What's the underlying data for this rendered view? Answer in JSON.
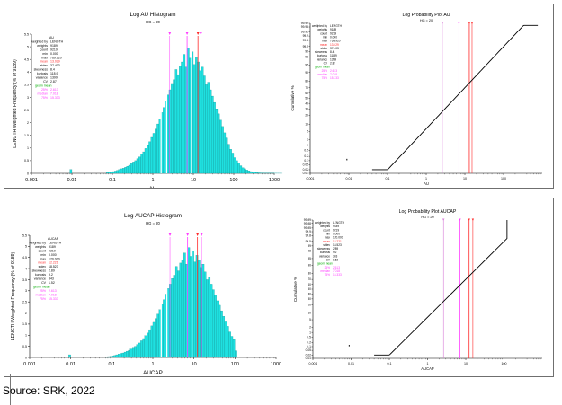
{
  "colors": {
    "bar": "#1fe0e0",
    "bar_edge": "#0b8c8c",
    "mean": "#ff2a2a",
    "median": "#ff3dff",
    "quantile": "#d87cd8",
    "geom": "#00aa00",
    "curve": "#000000"
  },
  "source": "Source: SRK, 2022",
  "panels": [
    {
      "hist": {
        "title": "Log AU Histogram",
        "subtitle": "HG = 20",
        "xlabel": "AU",
        "ylabel": "LENGTH Weighted Frequency (% of 9189)",
        "stats_header": "AU",
        "stats": [
          [
            "weighted by",
            "LENGTH"
          ],
          [
            "weights",
            "9189"
          ],
          [
            "count",
            "9219"
          ],
          [
            "min",
            "0.000"
          ],
          [
            "max",
            "769.920"
          ],
          [
            "mean",
            "13.029"
          ],
          [
            "stdev",
            "37.403"
          ],
          [
            "skewness",
            "8.4"
          ],
          [
            "kurtosis",
            "118.9"
          ],
          [
            "variance",
            "1399"
          ],
          [
            "CV",
            "2.87"
          ]
        ],
        "geo_label": "geom mean",
        "quantiles": [
          [
            "25%",
            "2.613"
          ],
          [
            "median",
            "7.018"
          ],
          [
            "75%",
            "15.333"
          ]
        ]
      },
      "prob": {
        "title": "Log Probability Plot AU",
        "subtitle": "HG = 20",
        "xlabel": "AU",
        "ylabel": "Cumulative %",
        "stats_header": "",
        "stats": [
          [
            "weighted by",
            "LENGTH"
          ],
          [
            "weights",
            "9189"
          ],
          [
            "count",
            "9219"
          ],
          [
            "min",
            "0.000"
          ],
          [
            "max",
            "769.920"
          ],
          [
            "mean",
            "13.029"
          ],
          [
            "stdev",
            "37.403"
          ],
          [
            "skewness",
            "8.4"
          ],
          [
            "kurtosis",
            "118.9"
          ],
          [
            "variance",
            "1399"
          ],
          [
            "CV",
            "2.87"
          ]
        ],
        "geo_label": "geom mean",
        "quantiles": [
          [
            "25%",
            "2.613"
          ],
          [
            "median",
            "7.018"
          ],
          [
            "75%",
            "15.333"
          ]
        ]
      }
    },
    {
      "hist": {
        "title": "Log AUCAP Histogram",
        "subtitle": "HG = 20",
        "xlabel": "AUCAP",
        "ylabel": "LENGTH Weighted Frequency (% of 9189)",
        "stats_header": "AUCAP",
        "stats": [
          [
            "weighted by",
            "LENGTH"
          ],
          [
            "weights",
            "9189"
          ],
          [
            "count",
            "9219"
          ],
          [
            "min",
            "0.000"
          ],
          [
            "max",
            "120.000"
          ],
          [
            "mean",
            "12.221"
          ],
          [
            "stdev",
            "18.523"
          ],
          [
            "skewness",
            "2.89"
          ],
          [
            "kurtosis",
            "9.2"
          ],
          [
            "variance",
            "343"
          ],
          [
            "CV",
            "1.52"
          ]
        ],
        "geo_label": "geom mean",
        "quantiles": [
          [
            "25%",
            "2.613"
          ],
          [
            "median",
            "7.018"
          ],
          [
            "75%",
            "15.333"
          ]
        ]
      },
      "prob": {
        "title": "Log Probability Plot AUCAP",
        "subtitle": "HG = 20",
        "xlabel": "AUCAP",
        "ylabel": "Cumulative %",
        "stats_header": "",
        "stats": [
          [
            "weighted by",
            "LENGTH"
          ],
          [
            "weights",
            "9189"
          ],
          [
            "count",
            "9219"
          ],
          [
            "min",
            "0.000"
          ],
          [
            "max",
            "120.000"
          ],
          [
            "mean",
            "12.221"
          ],
          [
            "stdev",
            "18.523"
          ],
          [
            "skewness",
            "2.89"
          ],
          [
            "kurtosis",
            "9.2"
          ],
          [
            "variance",
            "343"
          ],
          [
            "CV",
            "1.52"
          ]
        ],
        "geo_label": "geom mean",
        "quantiles": [
          [
            "25%",
            "2.613"
          ],
          [
            "median",
            "7.018"
          ],
          [
            "75%",
            "15.333"
          ]
        ]
      }
    }
  ],
  "chart_data": [
    {
      "type": "bar",
      "title": "Log AU Histogram",
      "subtitle": "HG = 20",
      "xlabel": "AU",
      "ylabel": "LENGTH Weighted Frequency (% of 9189)",
      "x_scale": "log",
      "xlim": [
        0.001,
        1000
      ],
      "ylim": [
        0,
        5.5
      ],
      "x_ticks": [
        "0.001",
        "0.01",
        "0.1",
        "1",
        "10",
        "100",
        "1000"
      ],
      "y_ticks": [
        "0",
        "0.5",
        "1",
        "1.5",
        "2",
        "2.5",
        "3",
        "3.5",
        "4",
        "4.5",
        "5",
        "5.5"
      ],
      "bin_start": 0.0089,
      "bins_per_decade": 20,
      "values": [
        0.15,
        0,
        0,
        0,
        0,
        0,
        0,
        0,
        0,
        0,
        0,
        0,
        0,
        0,
        0,
        0,
        0,
        0,
        0.03,
        0.04,
        0.05,
        0.07,
        0.09,
        0.12,
        0.15,
        0.18,
        0.2,
        0.24,
        0.28,
        0.32,
        0.38,
        0.45,
        0.5,
        0.58,
        0.65,
        0.75,
        0.85,
        0.98,
        1.1,
        1.25,
        1.42,
        1.58,
        1.75,
        1.95,
        2.15,
        2.4,
        2.6,
        2.85,
        3.1,
        3.3,
        3.55,
        3.7,
        4.1,
        3.9,
        4.25,
        4.4,
        4.7,
        4.2,
        4.95,
        4.55,
        4.8,
        4.3,
        4.6,
        4.4,
        4.05,
        4.2,
        3.85,
        3.5,
        3.6,
        3.3,
        3.05,
        2.8,
        2.55,
        2.35,
        2.1,
        1.85,
        1.6,
        1.4,
        1.15,
        0.95,
        0.8,
        0.62,
        0.5,
        0.4,
        0.3,
        0.22,
        0.18,
        0.13,
        0.1,
        0.07,
        0.05,
        0.04,
        0.03,
        0.02,
        0.015,
        0.01,
        0.01,
        0.01,
        0.008,
        0.006,
        0.005,
        0.004,
        0.003,
        0.003,
        0.002
      ],
      "spikes": [
        {
          "x": 1.6,
          "value": 2.9
        },
        {
          "x": 2.2,
          "value": 3.3
        },
        {
          "x": 9.0,
          "value": 4.9
        }
      ],
      "markers": {
        "q25": 2.613,
        "median": 7.018,
        "mean": 13.029,
        "q75": 15.333
      },
      "grid": false
    },
    {
      "type": "line",
      "title": "Log Probability Plot AU",
      "subtitle": "HG = 20",
      "xlabel": "AU",
      "ylabel": "Cumulative %",
      "x_scale": "log",
      "y_scale": "probability",
      "xlim": [
        0.001,
        1000
      ],
      "x_ticks": [
        "0.001",
        "0.01",
        "0.1",
        "1",
        "10",
        "100"
      ],
      "y_ticks": [
        "0.01",
        "0.02",
        "0.05",
        "0.1",
        "0.2",
        "0.5",
        "1",
        "2",
        "5",
        "10",
        "20",
        "30",
        "40",
        "50",
        "60",
        "70",
        "80",
        "90",
        "95",
        "98",
        "99",
        "99.5",
        "99.8",
        "99.9",
        "99.95",
        "99.98",
        "99.99"
      ],
      "gm": 5.5,
      "gsd": 3.1,
      "x_range": [
        0.04,
        770
      ],
      "isolated_point": {
        "x": 0.0089,
        "y": 0.12
      },
      "markers": {
        "q25": 2.613,
        "median": 7.018,
        "mean": 13.029,
        "q75": 15.333
      },
      "grid": false
    },
    {
      "type": "bar",
      "title": "Log AUCAP Histogram",
      "subtitle": "HG = 20",
      "xlabel": "AUCAP",
      "ylabel": "LENGTH Weighted Frequency (% of 9189)",
      "x_scale": "log",
      "xlim": [
        0.001,
        1000
      ],
      "ylim": [
        0,
        5.5
      ],
      "x_ticks": [
        "0.001",
        "0.01",
        "0.1",
        "1",
        "10",
        "100",
        "1000"
      ],
      "y_ticks": [
        "0",
        "0.5",
        "1",
        "1.5",
        "2",
        "2.5",
        "3",
        "3.5",
        "4",
        "4.5",
        "5",
        "5.5"
      ],
      "bin_start": 0.0089,
      "bins_per_decade": 20,
      "values": [
        0.12,
        0,
        0,
        0,
        0,
        0,
        0,
        0,
        0,
        0,
        0,
        0,
        0,
        0,
        0,
        0,
        0,
        0,
        0.03,
        0.04,
        0.05,
        0.07,
        0.09,
        0.12,
        0.15,
        0.18,
        0.2,
        0.24,
        0.28,
        0.32,
        0.38,
        0.45,
        0.5,
        0.58,
        0.65,
        0.75,
        0.85,
        0.98,
        1.1,
        1.25,
        1.42,
        1.58,
        1.75,
        1.95,
        2.15,
        2.4,
        2.6,
        2.85,
        3.1,
        3.3,
        3.55,
        3.7,
        4.1,
        3.9,
        4.25,
        4.4,
        4.7,
        4.2,
        4.95,
        4.55,
        4.8,
        4.3,
        4.6,
        4.4,
        4.05,
        4.2,
        3.85,
        3.5,
        3.6,
        3.3,
        3.05,
        2.8,
        2.55,
        2.35,
        2.1,
        1.85,
        1.6,
        1.4,
        1.15,
        0.95,
        0.8,
        0.3
      ],
      "spikes": [
        {
          "x": 1.6,
          "value": 2.9
        },
        {
          "x": 2.2,
          "value": 3.3
        },
        {
          "x": 9.0,
          "value": 4.9
        }
      ],
      "markers": {
        "q25": 2.613,
        "median": 7.018,
        "mean": 12.221,
        "q75": 15.333
      },
      "grid": false
    },
    {
      "type": "line",
      "title": "Log Probability Plot AUCAP",
      "subtitle": "HG = 20",
      "xlabel": "AUCAP",
      "ylabel": "Cumulative %",
      "x_scale": "log",
      "y_scale": "probability",
      "xlim": [
        0.001,
        1000
      ],
      "x_ticks": [
        "0.001",
        "0.01",
        "0.1",
        "1",
        "10",
        "100"
      ],
      "y_ticks": [
        "0.01",
        "0.02",
        "0.05",
        "0.1",
        "0.2",
        "0.5",
        "1",
        "2",
        "5",
        "10",
        "20",
        "30",
        "40",
        "50",
        "60",
        "70",
        "80",
        "90",
        "95",
        "98",
        "99",
        "99.5",
        "99.8",
        "99.9",
        "99.95",
        "99.98",
        "99.99"
      ],
      "gm": 5.5,
      "gsd": 3.1,
      "x_range": [
        0.04,
        120
      ],
      "cap_x": 120,
      "isolated_point": {
        "x": 0.0089,
        "y": 0.12
      },
      "markers": {
        "q25": 2.613,
        "median": 7.018,
        "mean": 12.221,
        "q75": 15.333
      },
      "grid": false
    }
  ]
}
